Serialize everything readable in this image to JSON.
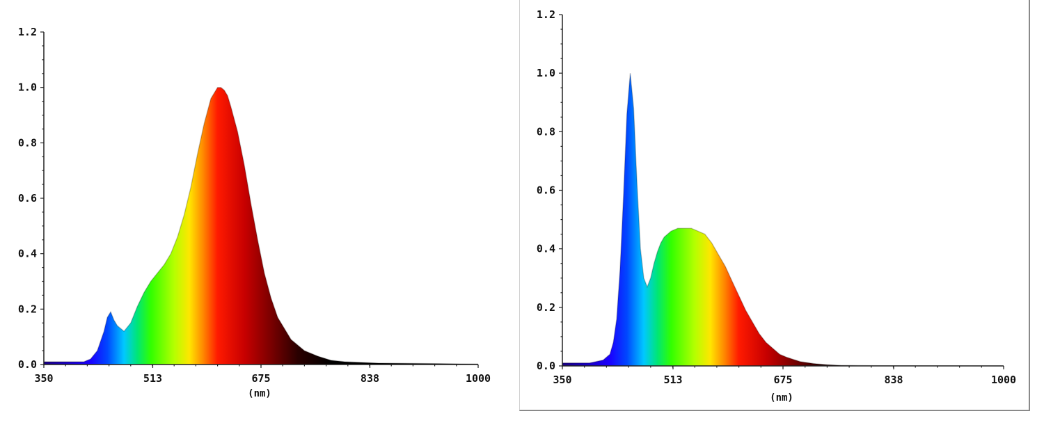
{
  "colors": {
    "axis": "#222222",
    "spectrum_stops": [
      "#1a00ff",
      "#0047ff",
      "#00c8ff",
      "#00e676",
      "#31ff00",
      "#b4ff00",
      "#ffe600",
      "#ff8a00",
      "#ff1a00",
      "#c80000",
      "#7a0000",
      "#2a0000",
      "#000000"
    ]
  },
  "chart_data": [
    {
      "type": "area",
      "xlabel": "(nm)",
      "xlim": [
        350,
        1000
      ],
      "ylim": [
        0,
        1.2
      ],
      "xticks": [
        "350",
        "513",
        "675",
        "838",
        "1000"
      ],
      "yticks": [
        "0.0",
        "0.2",
        "0.4",
        "0.6",
        "0.8",
        "1.0",
        "1.2"
      ],
      "grid": false,
      "x": [
        350,
        380,
        410,
        420,
        430,
        440,
        445,
        450,
        455,
        460,
        465,
        470,
        480,
        490,
        500,
        510,
        520,
        530,
        540,
        550,
        560,
        570,
        580,
        590,
        600,
        610,
        615,
        620,
        625,
        630,
        640,
        650,
        660,
        670,
        680,
        690,
        700,
        720,
        740,
        760,
        780,
        800,
        850,
        1000
      ],
      "values": [
        0.01,
        0.01,
        0.01,
        0.02,
        0.05,
        0.12,
        0.17,
        0.19,
        0.16,
        0.14,
        0.13,
        0.12,
        0.15,
        0.21,
        0.26,
        0.3,
        0.33,
        0.36,
        0.4,
        0.46,
        0.54,
        0.64,
        0.76,
        0.87,
        0.96,
        1.0,
        1.0,
        0.99,
        0.97,
        0.93,
        0.84,
        0.72,
        0.58,
        0.45,
        0.33,
        0.24,
        0.17,
        0.09,
        0.05,
        0.03,
        0.015,
        0.01,
        0.005,
        0.002
      ]
    },
    {
      "type": "area",
      "xlabel": "(nm)",
      "xlim": [
        350,
        1000
      ],
      "ylim": [
        0,
        1.2
      ],
      "xticks": [
        "350",
        "513",
        "675",
        "838",
        "1000"
      ],
      "yticks": [
        "0.0",
        "0.2",
        "0.4",
        "0.6",
        "0.8",
        "1.0",
        "1.2"
      ],
      "grid": false,
      "x": [
        350,
        390,
        410,
        420,
        425,
        430,
        435,
        440,
        445,
        450,
        455,
        460,
        465,
        470,
        475,
        480,
        485,
        490,
        495,
        500,
        510,
        520,
        530,
        540,
        550,
        560,
        570,
        580,
        590,
        600,
        610,
        620,
        630,
        640,
        650,
        660,
        670,
        680,
        700,
        720,
        740,
        760,
        800,
        1000
      ],
      "values": [
        0.01,
        0.01,
        0.02,
        0.04,
        0.08,
        0.16,
        0.33,
        0.58,
        0.86,
        1.0,
        0.88,
        0.62,
        0.4,
        0.3,
        0.27,
        0.3,
        0.35,
        0.39,
        0.42,
        0.44,
        0.46,
        0.47,
        0.47,
        0.47,
        0.46,
        0.45,
        0.42,
        0.38,
        0.34,
        0.29,
        0.24,
        0.19,
        0.15,
        0.11,
        0.08,
        0.06,
        0.04,
        0.03,
        0.015,
        0.008,
        0.004,
        0.002,
        0.001,
        0.0
      ]
    }
  ]
}
